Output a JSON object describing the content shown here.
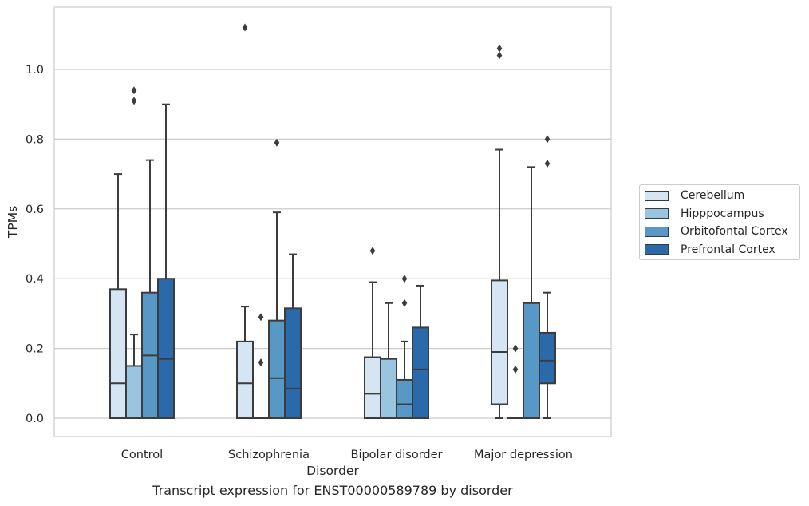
{
  "chart_data": {
    "type": "box",
    "xlabel": "Disorder",
    "ylabel": "TPMs",
    "categories": [
      "Control",
      "Schizophrenia",
      "Bipolar disorder",
      "Major depression"
    ],
    "yticks": [
      "0.0",
      "0.2",
      "0.4",
      "0.6",
      "0.8",
      "1.0"
    ],
    "ylim": [
      -0.055,
      1.185
    ],
    "grid": "horizontal",
    "legend_position": "right",
    "series": [
      {
        "name": "Cerebellum",
        "color": "#d6e5f3",
        "boxes": [
          {
            "q1": 0,
            "median": 0.1,
            "q3": 0.37,
            "whisker_low": 0,
            "whisker_high": 0.7,
            "outliers": []
          },
          {
            "q1": 0,
            "median": 0.1,
            "q3": 0.22,
            "whisker_low": 0,
            "whisker_high": 0.32,
            "outliers": [
              1.12
            ]
          },
          {
            "q1": 0,
            "median": 0.07,
            "q3": 0.175,
            "whisker_low": 0,
            "whisker_high": 0.39,
            "outliers": [
              0.48
            ]
          },
          {
            "q1": 0.04,
            "median": 0.19,
            "q3": 0.395,
            "whisker_low": 0,
            "whisker_high": 0.77,
            "outliers": [
              1.04,
              1.06
            ]
          }
        ]
      },
      {
        "name": "Hipppocampus",
        "color": "#9ac5e0",
        "boxes": [
          {
            "q1": 0,
            "median": 0,
            "q3": 0.15,
            "whisker_low": 0,
            "whisker_high": 0.24,
            "outliers": [
              0.91,
              0.94
            ]
          },
          {
            "q1": 0,
            "median": 0,
            "q3": 0,
            "whisker_low": 0,
            "whisker_high": 0,
            "outliers": [
              0.16,
              0.29
            ]
          },
          {
            "q1": 0,
            "median": 0,
            "q3": 0.17,
            "whisker_low": 0,
            "whisker_high": 0.33,
            "outliers": []
          },
          {
            "q1": 0,
            "median": 0,
            "q3": 0,
            "whisker_low": 0,
            "whisker_high": 0,
            "outliers": [
              0.14,
              0.2
            ]
          }
        ]
      },
      {
        "name": "Orbitofontal Cortex",
        "color": "#5798c6",
        "boxes": [
          {
            "q1": 0,
            "median": 0.18,
            "q3": 0.36,
            "whisker_low": 0,
            "whisker_high": 0.74,
            "outliers": []
          },
          {
            "q1": 0,
            "median": 0.115,
            "q3": 0.28,
            "whisker_low": 0,
            "whisker_high": 0.59,
            "outliers": [
              0.79
            ]
          },
          {
            "q1": 0,
            "median": 0.04,
            "q3": 0.11,
            "whisker_low": 0,
            "whisker_high": 0.22,
            "outliers": [
              0.33,
              0.4
            ]
          },
          {
            "q1": 0,
            "median": 0,
            "q3": 0.33,
            "whisker_low": 0,
            "whisker_high": 0.72,
            "outliers": []
          }
        ]
      },
      {
        "name": "Prefrontal Cortex",
        "color": "#2b6aaa",
        "boxes": [
          {
            "q1": 0,
            "median": 0.17,
            "q3": 0.4,
            "whisker_low": 0,
            "whisker_high": 0.9,
            "outliers": []
          },
          {
            "q1": 0,
            "median": 0.085,
            "q3": 0.315,
            "whisker_low": 0,
            "whisker_high": 0.47,
            "outliers": []
          },
          {
            "q1": 0,
            "median": 0.14,
            "q3": 0.26,
            "whisker_low": 0,
            "whisker_high": 0.38,
            "outliers": []
          },
          {
            "q1": 0.1,
            "median": 0.165,
            "q3": 0.245,
            "whisker_low": 0,
            "whisker_high": 0.36,
            "outliers": [
              0.73,
              0.8
            ]
          }
        ]
      }
    ]
  },
  "caption": "Transcript expression for ENST00000589789 by disorder"
}
